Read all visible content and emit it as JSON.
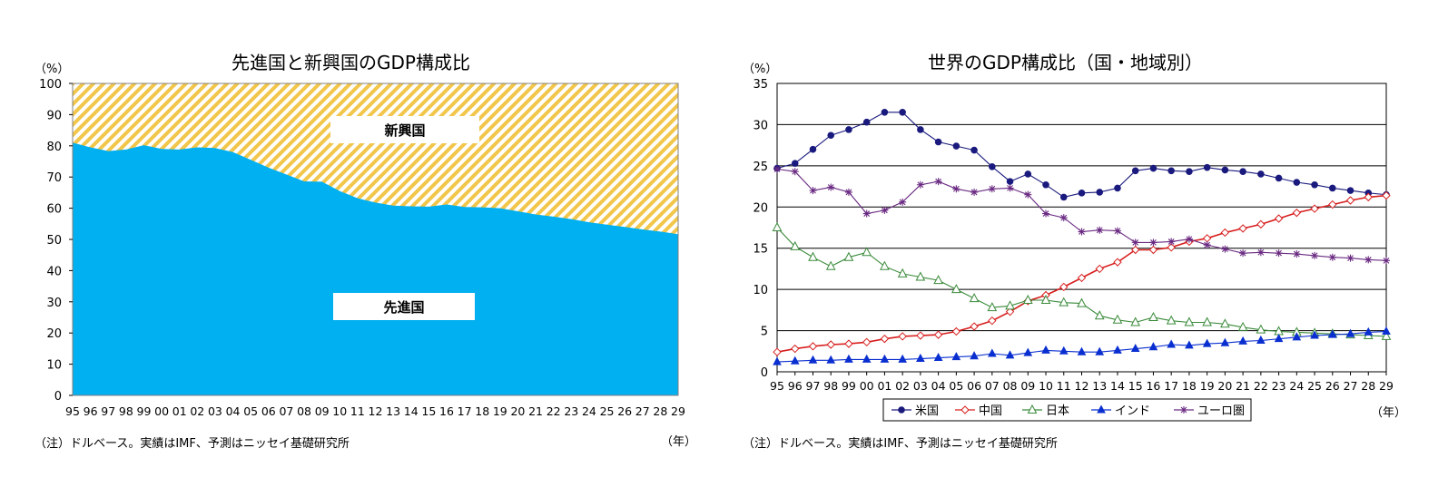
{
  "chart_data": [
    {
      "type": "area",
      "title": "先進国と新興国のGDP構成比",
      "unit_label": "（%）",
      "x_unit_label": "（年）",
      "note": "（注）ドルベース。実績はIMF、予測はニッセイ基礎研究所",
      "x": [
        "95",
        "96",
        "97",
        "98",
        "99",
        "00",
        "01",
        "02",
        "03",
        "04",
        "05",
        "06",
        "07",
        "08",
        "09",
        "10",
        "11",
        "12",
        "13",
        "14",
        "15",
        "16",
        "17",
        "18",
        "19",
        "20",
        "21",
        "22",
        "23",
        "24",
        "25",
        "26",
        "27",
        "28",
        "29"
      ],
      "ylim": [
        0,
        100
      ],
      "yticks": [
        0,
        10,
        20,
        30,
        40,
        50,
        60,
        70,
        80,
        90,
        100
      ],
      "stacked": true,
      "series": [
        {
          "name": "先進国",
          "color": "#00b0f0",
          "values": [
            81,
            79.5,
            78.3,
            78.8,
            80.2,
            79,
            78.8,
            79.5,
            79.3,
            78,
            75.5,
            73,
            70.8,
            68.6,
            68.5,
            65.5,
            63.2,
            61.8,
            60.8,
            60.6,
            60.5,
            61.2,
            60.4,
            60.3,
            60,
            59,
            58,
            57.3,
            56.5,
            55.5,
            54.7,
            54,
            53.2,
            52.5,
            51.7
          ]
        },
        {
          "name": "新興国",
          "color": "#f2c64a",
          "hatch": true,
          "values": [
            19,
            20.5,
            21.7,
            21.2,
            19.8,
            21,
            21.2,
            20.5,
            20.7,
            22,
            24.5,
            27,
            29.2,
            31.4,
            31.5,
            34.5,
            36.8,
            38.2,
            39.2,
            39.4,
            39.5,
            38.8,
            39.6,
            39.7,
            40,
            41,
            42,
            42.7,
            43.5,
            44.5,
            45.3,
            46,
            46.8,
            47.5,
            48.3
          ]
        }
      ]
    },
    {
      "type": "line",
      "title": "世界のGDP構成比（国・地域別）",
      "unit_label": "（%）",
      "x_unit_label": "（年）",
      "note": "（注）ドルベース。実績はIMF、予測はニッセイ基礎研究所",
      "x": [
        "95",
        "96",
        "97",
        "98",
        "99",
        "00",
        "01",
        "02",
        "03",
        "04",
        "05",
        "06",
        "07",
        "08",
        "09",
        "10",
        "11",
        "12",
        "13",
        "14",
        "15",
        "16",
        "17",
        "18",
        "19",
        "20",
        "21",
        "22",
        "23",
        "24",
        "25",
        "26",
        "27",
        "28",
        "29"
      ],
      "ylim": [
        0,
        35
      ],
      "yticks": [
        0,
        5,
        10,
        15,
        20,
        25,
        30,
        35
      ],
      "grid": true,
      "legend": "bottom",
      "series": [
        {
          "name": "米国",
          "color": "#1a1a7e",
          "marker": "circle",
          "values": [
            24.7,
            25.3,
            27.0,
            28.7,
            29.4,
            30.3,
            31.5,
            31.5,
            29.4,
            27.9,
            27.4,
            26.9,
            24.9,
            23.1,
            24.0,
            22.7,
            21.2,
            21.7,
            21.8,
            22.3,
            24.4,
            24.7,
            24.4,
            24.3,
            24.8,
            24.5,
            24.3,
            24.0,
            23.5,
            23.0,
            22.7,
            22.3,
            22.0,
            21.7,
            21.5
          ]
        },
        {
          "name": "中国",
          "color": "#d81e1e",
          "marker": "diamond",
          "values": [
            2.4,
            2.8,
            3.1,
            3.3,
            3.4,
            3.6,
            4.0,
            4.3,
            4.4,
            4.5,
            4.9,
            5.5,
            6.2,
            7.3,
            8.6,
            9.3,
            10.3,
            11.4,
            12.5,
            13.3,
            14.8,
            14.8,
            15.1,
            15.8,
            16.2,
            16.9,
            17.4,
            17.9,
            18.6,
            19.3,
            19.8,
            20.3,
            20.8,
            21.2,
            21.4
          ]
        },
        {
          "name": "日本",
          "color": "#3a8a3a",
          "marker": "triangle-open",
          "values": [
            17.5,
            15.2,
            13.9,
            12.8,
            13.9,
            14.5,
            12.8,
            11.9,
            11.5,
            11.1,
            10.0,
            8.9,
            7.8,
            8.0,
            8.7,
            8.7,
            8.4,
            8.3,
            6.8,
            6.3,
            6.0,
            6.6,
            6.2,
            6.0,
            6.0,
            5.8,
            5.4,
            5.1,
            4.9,
            4.8,
            4.7,
            4.6,
            4.5,
            4.4,
            4.3
          ]
        },
        {
          "name": "インド",
          "color": "#0a2fd0",
          "marker": "triangle",
          "values": [
            1.2,
            1.3,
            1.4,
            1.4,
            1.5,
            1.5,
            1.5,
            1.5,
            1.6,
            1.7,
            1.8,
            1.9,
            2.2,
            2.0,
            2.3,
            2.6,
            2.5,
            2.4,
            2.4,
            2.6,
            2.8,
            3.0,
            3.3,
            3.2,
            3.4,
            3.5,
            3.7,
            3.8,
            4.0,
            4.2,
            4.4,
            4.5,
            4.6,
            4.8,
            4.9
          ]
        },
        {
          "name": "ユーロ圏",
          "color": "#6a2a82",
          "marker": "star",
          "values": [
            24.6,
            24.3,
            22.0,
            22.4,
            21.8,
            19.2,
            19.6,
            20.6,
            22.7,
            23.1,
            22.2,
            21.8,
            22.2,
            22.3,
            21.5,
            19.2,
            18.7,
            17.0,
            17.2,
            17.1,
            15.7,
            15.7,
            15.8,
            16.1,
            15.4,
            14.9,
            14.4,
            14.5,
            14.4,
            14.3,
            14.1,
            13.9,
            13.8,
            13.6,
            13.5
          ]
        }
      ]
    }
  ]
}
